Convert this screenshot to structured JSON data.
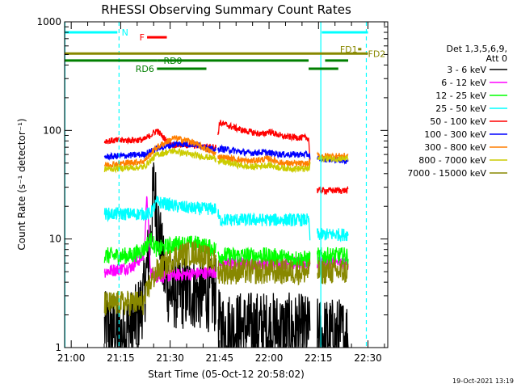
{
  "chart_data": {
    "type": "line",
    "title": "RHESSI Observing Summary Count Rates",
    "xlabel": "Start Time (05-Oct-12 20:58:02)",
    "ylabel": "Count Rate (s⁻¹ detector⁻¹)",
    "x_unit": "minutes since 20:58:02",
    "xlim": [
      0,
      98
    ],
    "ylim": [
      1,
      1000
    ],
    "yscale": "log",
    "x_tick_labels": [
      "21:00",
      "21:15",
      "21:30",
      "21:45",
      "22:00",
      "22:15",
      "22:30"
    ],
    "x_tick_minutes": [
      2,
      17,
      32,
      47,
      62,
      77,
      92
    ],
    "y_tick_labels": [
      "1",
      "10",
      "100",
      "1000"
    ],
    "y_tick_values": [
      1,
      10,
      100,
      1000
    ],
    "legend_header": [
      "Det 1,3,5,6,9,",
      "Att 0"
    ],
    "legend_position": "right",
    "timestamp": "19-Oct-2021 13:19",
    "gaps": [
      [
        0,
        12
      ],
      [
        46,
        46.5
      ],
      [
        74.5,
        76.5
      ],
      [
        86,
        98
      ]
    ],
    "series": [
      {
        "name": "3 - 6 keV",
        "color": "#000000",
        "noise": 0.35,
        "points": [
          [
            12,
            1.5
          ],
          [
            18,
            1.3
          ],
          [
            22,
            1.8
          ],
          [
            24,
            3
          ],
          [
            26,
            10
          ],
          [
            27,
            30
          ],
          [
            28,
            18
          ],
          [
            30,
            5
          ],
          [
            32,
            3.2
          ],
          [
            40,
            3.2
          ],
          [
            46,
            3.0
          ],
          [
            47,
            1.5
          ],
          [
            60,
            1.5
          ],
          [
            74,
            1.4
          ],
          [
            76.5,
            1.3
          ],
          [
            86,
            1.3
          ]
        ]
      },
      {
        "name": "6 - 12 keV",
        "color": "#ff00ff",
        "noise": 0.06,
        "points": [
          [
            12,
            5
          ],
          [
            20,
            5.5
          ],
          [
            24,
            7
          ],
          [
            25,
            25
          ],
          [
            26,
            5
          ],
          [
            28,
            4.5
          ],
          [
            40,
            4.8
          ],
          [
            46,
            5
          ],
          [
            47,
            6
          ],
          [
            74,
            6
          ],
          [
            76.5,
            6
          ],
          [
            86,
            6
          ]
        ]
      },
      {
        "name": "12 - 25 keV",
        "color": "#00ff00",
        "noise": 0.08,
        "points": [
          [
            12,
            7
          ],
          [
            20,
            7
          ],
          [
            24,
            8
          ],
          [
            26,
            10
          ],
          [
            28,
            8
          ],
          [
            34,
            9
          ],
          [
            40,
            9
          ],
          [
            46,
            8
          ],
          [
            47,
            7
          ],
          [
            60,
            7
          ],
          [
            74,
            6.5
          ],
          [
            76.5,
            7
          ],
          [
            86,
            7
          ]
        ]
      },
      {
        "name": "25 - 50 keV",
        "color": "#00ffff",
        "noise": 0.06,
        "points": [
          [
            12,
            17
          ],
          [
            24,
            17
          ],
          [
            26,
            17
          ],
          [
            28,
            22
          ],
          [
            34,
            20
          ],
          [
            40,
            19
          ],
          [
            46,
            19
          ],
          [
            47,
            15
          ],
          [
            60,
            15
          ],
          [
            74,
            15
          ],
          [
            75,
            6
          ],
          [
            76.5,
            11
          ],
          [
            86,
            11
          ]
        ]
      },
      {
        "name": "50 - 100 keV",
        "color": "#ff0000",
        "noise": 0.03,
        "points": [
          [
            12,
            80
          ],
          [
            24,
            82
          ],
          [
            26,
            90
          ],
          [
            28,
            100
          ],
          [
            32,
            74
          ],
          [
            38,
            73
          ],
          [
            46,
            70
          ],
          [
            47,
            118
          ],
          [
            54,
            100
          ],
          [
            60,
            92
          ],
          [
            62,
            98
          ],
          [
            66,
            88
          ],
          [
            74,
            85
          ],
          [
            75,
            28
          ],
          [
            76.5,
            28
          ],
          [
            86,
            28
          ]
        ]
      },
      {
        "name": "100 - 300 keV",
        "color": "#0000ff",
        "noise": 0.03,
        "points": [
          [
            12,
            57
          ],
          [
            24,
            60
          ],
          [
            28,
            68
          ],
          [
            34,
            75
          ],
          [
            40,
            74
          ],
          [
            46,
            65
          ],
          [
            47,
            68
          ],
          [
            56,
            62
          ],
          [
            60,
            63
          ],
          [
            66,
            60
          ],
          [
            74,
            60
          ],
          [
            75,
            55
          ],
          [
            76.5,
            55
          ],
          [
            86,
            53
          ]
        ]
      },
      {
        "name": "300 - 800 keV",
        "color": "#ff7f00",
        "noise": 0.03,
        "points": [
          [
            12,
            48
          ],
          [
            24,
            52
          ],
          [
            28,
            70
          ],
          [
            33,
            85
          ],
          [
            38,
            80
          ],
          [
            46,
            60
          ],
          [
            47,
            57
          ],
          [
            56,
            52
          ],
          [
            62,
            55
          ],
          [
            66,
            50
          ],
          [
            74,
            49
          ],
          [
            75,
            58
          ],
          [
            76.5,
            58
          ],
          [
            86,
            58
          ]
        ]
      },
      {
        "name": "800 - 7000 keV",
        "color": "#cccc00",
        "noise": 0.03,
        "points": [
          [
            12,
            44
          ],
          [
            24,
            46
          ],
          [
            28,
            60
          ],
          [
            33,
            65
          ],
          [
            38,
            60
          ],
          [
            46,
            55
          ],
          [
            47,
            52
          ],
          [
            56,
            46
          ],
          [
            62,
            48
          ],
          [
            66,
            45
          ],
          [
            74,
            44
          ],
          [
            75,
            55
          ],
          [
            76.5,
            55
          ],
          [
            86,
            55
          ]
        ]
      },
      {
        "name": "7000 - 15000 keV",
        "color": "#888800",
        "noise": 0.12,
        "points": [
          [
            12,
            2.5
          ],
          [
            24,
            2.6
          ],
          [
            26,
            4
          ],
          [
            28,
            5
          ],
          [
            34,
            7
          ],
          [
            40,
            7.5
          ],
          [
            46,
            6
          ],
          [
            47,
            5
          ],
          [
            60,
            5
          ],
          [
            74,
            5
          ],
          [
            76.5,
            5
          ],
          [
            86,
            5
          ]
        ]
      }
    ],
    "vertical_lines": [
      {
        "x": 0.1,
        "color": "#00ffff",
        "style": "solid"
      },
      {
        "x": 16.5,
        "color": "#00ffff",
        "style": "dashed"
      },
      {
        "x": 77.7,
        "color": "#00ffff",
        "style": "solid"
      },
      {
        "x": 91.5,
        "color": "#00ffff",
        "style": "dashed"
      }
    ],
    "flags": [
      {
        "label": "N",
        "color": "#00ffff",
        "y": 800,
        "segments": [
          [
            0,
            16
          ],
          [
            78,
            92
          ]
        ],
        "label_x": 17.3
      },
      {
        "label": "F",
        "color": "#ff0000",
        "y": 720,
        "segments": [
          [
            25,
            31
          ]
        ],
        "label_x": 22.7
      },
      {
        "label": "FD1",
        "color": "#888800",
        "y": 560,
        "segments": [
          [
            89,
            90
          ]
        ],
        "label_x": 83.5
      },
      {
        "label": "FD2",
        "color": "#888800",
        "y": 510,
        "segments": [
          [
            0,
            92
          ]
        ],
        "label_x": 92
      },
      {
        "label": "RD0",
        "color": "#007f00",
        "y": 440,
        "segments": [
          [
            0,
            28
          ],
          [
            28,
            74
          ],
          [
            79,
            86
          ]
        ],
        "label_x": 30
      },
      {
        "label": "RD6",
        "color": "#007f00",
        "y": 370,
        "segments": [
          [
            28,
            43
          ],
          [
            74,
            83
          ]
        ],
        "label_x": 21.5
      }
    ]
  }
}
